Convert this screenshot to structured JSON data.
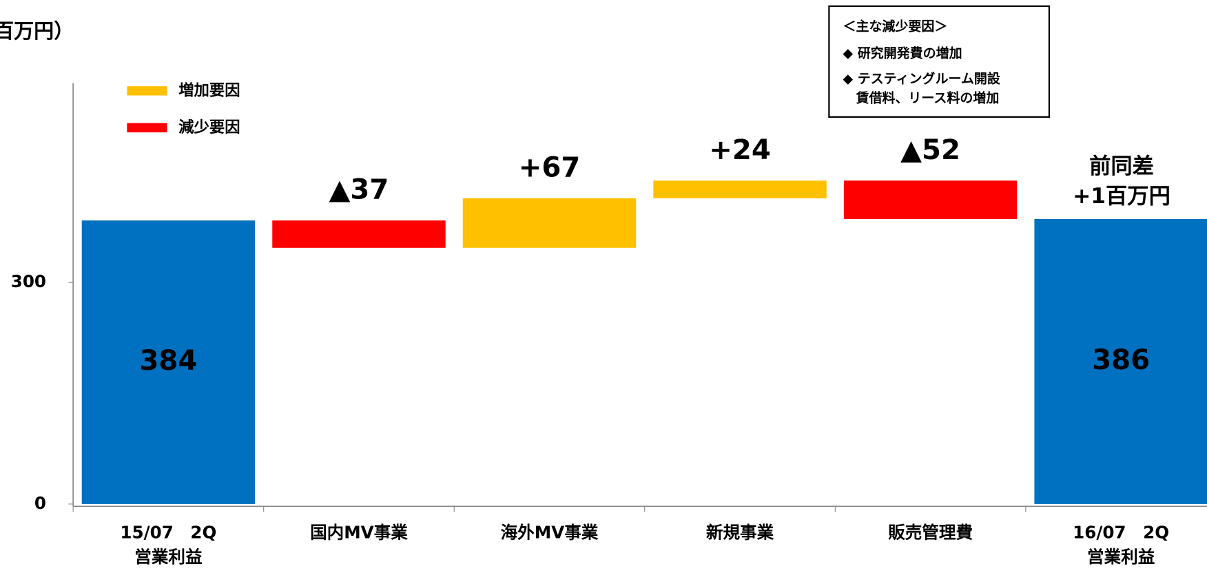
{
  "chart_data": {
    "type": "waterfall",
    "title": "百万円）",
    "categories": [
      "15/07　2Q\n営業利益",
      "国内MV事業",
      "海外MV事業",
      "新規事業",
      "販売管理費",
      "16/07　2Q\n営業利益"
    ],
    "values": [
      384,
      -37,
      67,
      24,
      -52,
      386
    ],
    "value_labels": [
      "384",
      "▲37",
      "+67",
      "+24",
      "▲52",
      "386"
    ],
    "total_indices": [
      0,
      5
    ],
    "colors": {
      "total": "#0070c0",
      "increase": "#ffc000",
      "decrease": "#ff0000"
    },
    "legend": [
      {
        "name": "増加要因",
        "color": "#ffc000"
      },
      {
        "name": "減少要因",
        "color": "#ff0000"
      }
    ],
    "ylim": [
      0,
      570
    ],
    "yticks": [
      0,
      300
    ],
    "grid": false,
    "annotations": {
      "difference": [
        "前同差",
        "+1百万円"
      ],
      "note": [
        "＜主な減少要因＞",
        "◆ 研究開発費の増加",
        "◆ テスティングルーム開設",
        "　賃借料、リース料の増加"
      ]
    }
  }
}
